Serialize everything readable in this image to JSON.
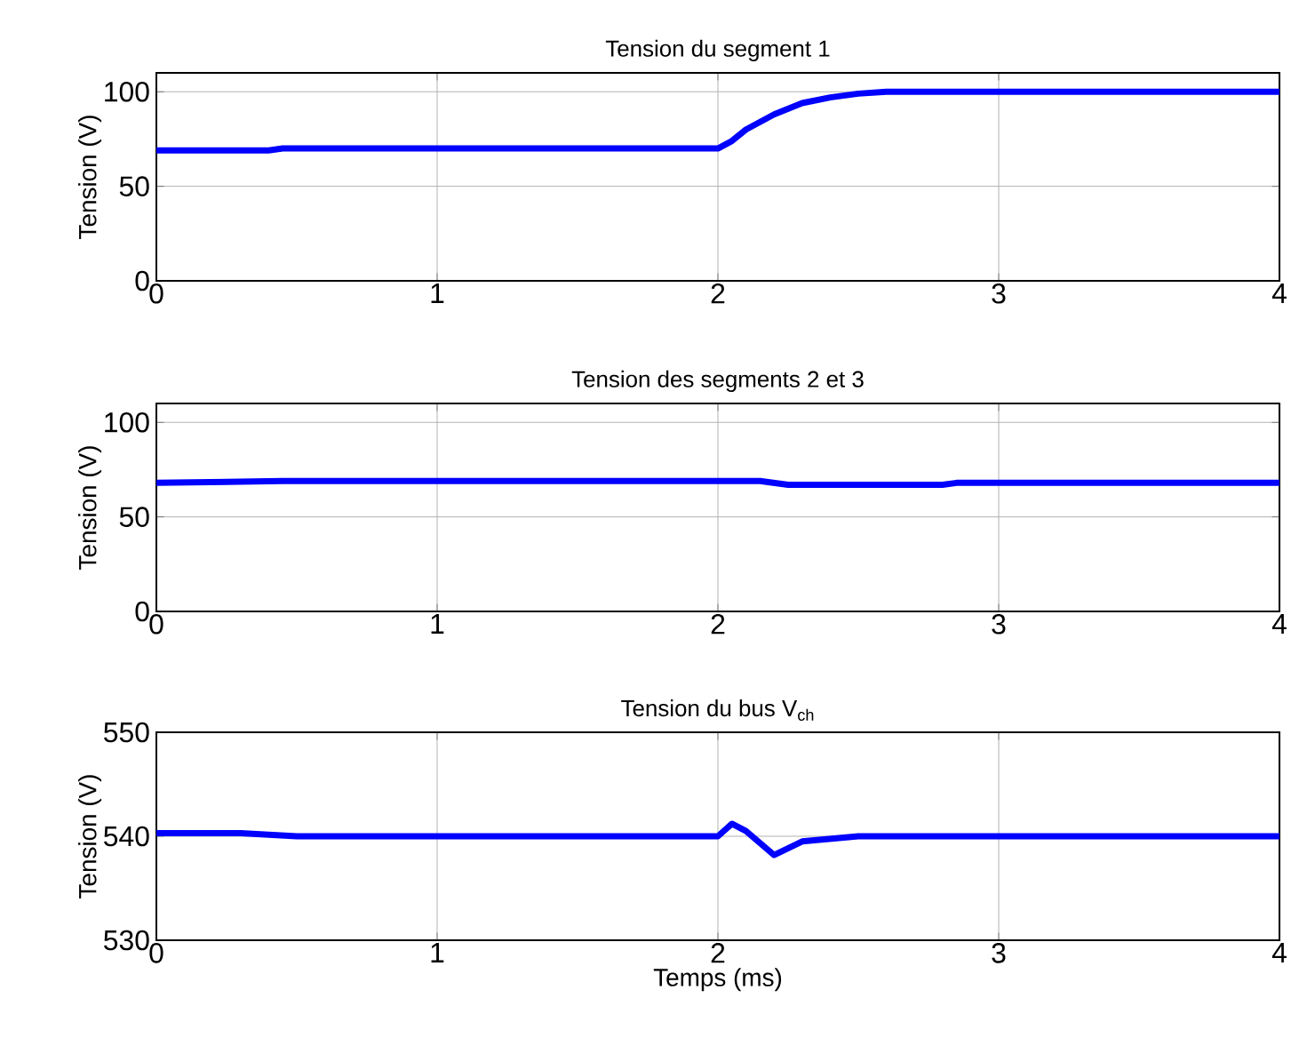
{
  "chart_data": [
    {
      "type": "line",
      "title": "Tension du segment 1",
      "ylabel": "Tension (V)",
      "xlim": [
        0,
        4
      ],
      "ylim": [
        0,
        110
      ],
      "xticks": [
        0,
        1,
        2,
        3,
        4
      ],
      "yticks": [
        0,
        50,
        100
      ],
      "grid": true,
      "series": [
        {
          "color": "#0000ff",
          "x": [
            0,
            0.4,
            0.45,
            2.0,
            2.05,
            2.1,
            2.2,
            2.3,
            2.4,
            2.5,
            2.6,
            4
          ],
          "values": [
            69,
            69,
            70,
            70,
            74,
            80,
            88,
            94,
            97,
            99,
            100,
            100
          ]
        }
      ]
    },
    {
      "type": "line",
      "title": "Tension des segments 2 et 3",
      "ylabel": "Tension (V)",
      "xlim": [
        0,
        4
      ],
      "ylim": [
        0,
        110
      ],
      "xticks": [
        0,
        1,
        2,
        3,
        4
      ],
      "yticks": [
        0,
        50,
        100
      ],
      "grid": true,
      "series": [
        {
          "color": "#0000ff",
          "x": [
            0,
            0.45,
            2.15,
            2.25,
            2.8,
            2.85,
            4
          ],
          "values": [
            68,
            69,
            69,
            67,
            67,
            68,
            68
          ]
        }
      ]
    },
    {
      "type": "line",
      "title": "Tension du bus V$_{ch}$",
      "xlabel": "Temps (ms)",
      "ylabel": "Tension (V)",
      "xlim": [
        0,
        4
      ],
      "ylim": [
        530,
        550
      ],
      "xticks": [
        0,
        1,
        2,
        3,
        4
      ],
      "yticks": [
        530,
        540,
        550
      ],
      "grid": true,
      "series": [
        {
          "color": "#0000ff",
          "x": [
            0,
            0.3,
            0.5,
            2.0,
            2.05,
            2.1,
            2.2,
            2.3,
            2.5,
            4
          ],
          "values": [
            540.3,
            540.3,
            540,
            540,
            541.2,
            540.5,
            538.2,
            539.5,
            540,
            540
          ]
        }
      ]
    }
  ]
}
